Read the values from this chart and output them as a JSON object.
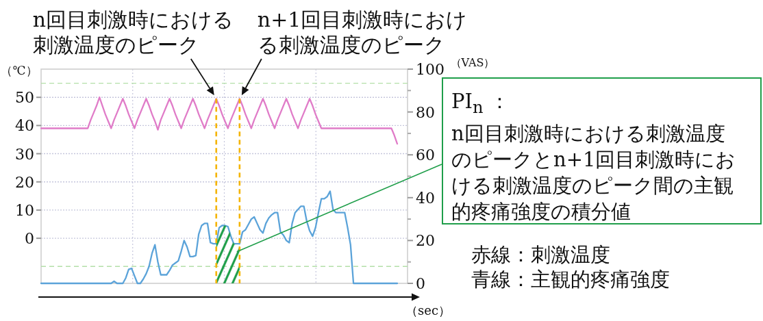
{
  "chart_data": {
    "type": "line",
    "categories": [
      null,
      null,
      null,
      null,
      null,
      null,
      null,
      null,
      null,
      null,
      null,
      null,
      null,
      null,
      null,
      null,
      null,
      null,
      null,
      null,
      null,
      null,
      null,
      null,
      null,
      null,
      null,
      null,
      null,
      null,
      null,
      null,
      null,
      null,
      null,
      null,
      null,
      null,
      null,
      null,
      null,
      null,
      null,
      null,
      null,
      null,
      null,
      null,
      null,
      null,
      null,
      null,
      null,
      null,
      null,
      null,
      null,
      null,
      null,
      null,
      null,
      null,
      null,
      null,
      null,
      null,
      null,
      null,
      null,
      null,
      null,
      null,
      null,
      null,
      null,
      null,
      null,
      null,
      null,
      null,
      null,
      null,
      null,
      null,
      null,
      null,
      null,
      null,
      null,
      null,
      null,
      null,
      null,
      null,
      null,
      null,
      null,
      null,
      null,
      null,
      null,
      null,
      null,
      null,
      null,
      null,
      null,
      null,
      null,
      null,
      null,
      null,
      null,
      null,
      null,
      null,
      null,
      null,
      null,
      null,
      null,
      null,
      null
    ],
    "series": [
      {
        "type": "line",
        "color": "#e07cc8",
        "values": [
          39,
          39,
          39,
          39,
          39,
          39,
          39,
          39,
          39,
          39,
          39,
          39,
          39,
          39,
          39,
          39,
          39,
          42,
          44.5,
          47,
          50,
          47,
          44,
          41.5,
          39,
          42,
          44.5,
          47,
          49.5,
          47,
          44,
          41.5,
          39,
          42,
          44.5,
          47,
          49.5,
          47,
          44,
          41.5,
          38.5,
          42,
          44.5,
          47,
          49.5,
          47,
          44,
          41.5,
          39,
          42,
          44.5,
          47,
          49.5,
          47,
          44,
          41.5,
          39,
          42,
          44.5,
          47,
          49.5,
          47,
          44,
          41.5,
          39,
          42,
          44.5,
          47,
          49.5,
          47,
          44,
          41.5,
          39,
          42,
          44.5,
          47,
          49.5,
          47,
          44,
          41.5,
          39,
          42,
          44.5,
          47,
          49.5,
          47,
          44,
          41.5,
          39,
          42,
          44.5,
          47,
          49.5,
          47,
          44,
          41.5,
          39,
          39,
          39,
          39,
          39,
          39,
          39,
          39,
          39,
          39,
          39,
          39,
          39,
          39,
          39,
          39,
          39,
          39,
          39,
          39,
          39,
          39,
          39,
          39,
          39,
          36.5,
          33.5
        ]
      },
      {
        "type": "line",
        "axis": "y2",
        "color": "#5ba3d9",
        "values": [
          0,
          0,
          0,
          0,
          0,
          0,
          0,
          0,
          0,
          0,
          0,
          0,
          0,
          0,
          0,
          0,
          0,
          0,
          0,
          0,
          0,
          0,
          0,
          0,
          0,
          1,
          0,
          0,
          0,
          2.5,
          6.5,
          7,
          3.5,
          0,
          0,
          2,
          4.5,
          8,
          14,
          18,
          10,
          4,
          4,
          4,
          6,
          8.5,
          9.5,
          10.5,
          15,
          20,
          17,
          12.5,
          12.5,
          13,
          23,
          27,
          28,
          28,
          19,
          18.5,
          18.5,
          26,
          27,
          27,
          26.5,
          22,
          18.5,
          18.5,
          18.5,
          24,
          25,
          27.5,
          30,
          31,
          28,
          25,
          23.5,
          28,
          30.5,
          32,
          33,
          33,
          24,
          22.5,
          20,
          19,
          28,
          33,
          34.5,
          36,
          36,
          29,
          24.5,
          22,
          26,
          33,
          39.5,
          39.5,
          40.5,
          43,
          34.5,
          33,
          33,
          33,
          33,
          26,
          18,
          0,
          0,
          0,
          0,
          0,
          0,
          0,
          0,
          0,
          0,
          0,
          0,
          0,
          0,
          0,
          0
        ]
      },
      {
        "type": "area",
        "axis": "y2",
        "color": "#1f9e4a",
        "values": [
          null,
          null,
          null,
          null,
          null,
          null,
          null,
          null,
          null,
          null,
          null,
          null,
          null,
          null,
          null,
          null,
          null,
          null,
          null,
          null,
          null,
          null,
          null,
          null,
          null,
          null,
          null,
          null,
          null,
          null,
          null,
          null,
          null,
          null,
          null,
          null,
          null,
          null,
          null,
          null,
          null,
          null,
          null,
          null,
          null,
          null,
          null,
          null,
          null,
          null,
          null,
          null,
          null,
          null,
          null,
          null,
          null,
          null,
          null,
          null,
          18.5,
          26,
          27,
          27,
          26.5,
          22,
          18.5,
          18.5,
          18.5,
          null,
          null,
          null,
          null,
          null,
          null,
          null,
          null,
          null,
          null,
          null,
          null,
          null,
          null,
          null,
          null,
          null,
          null,
          null,
          null,
          null,
          null,
          null,
          null,
          null,
          null,
          null,
          null,
          null,
          null,
          null,
          null,
          null,
          null,
          null,
          null,
          null,
          null,
          null,
          null,
          null,
          null,
          null,
          null,
          null,
          null,
          null,
          null,
          null,
          null,
          null,
          null,
          null,
          null
        ]
      }
    ],
    "ylabel": "（℃）",
    "y2label": "（VAS）",
    "xlabel": "（sec）",
    "ylim": [
      -16,
      60
    ],
    "yticks": [
      0,
      10,
      20,
      30,
      40,
      50
    ],
    "y2lim": [
      0,
      100
    ],
    "y2ticks": [
      0,
      20,
      40,
      60,
      80,
      100
    ],
    "grid": "y",
    "ref_lines": [
      {
        "axis": "y",
        "value": 55,
        "color": "#b3dfa8",
        "line_style": "dashed"
      },
      {
        "axis": "y",
        "value": -10,
        "color": "#b3dfa8",
        "line_style": "dashed"
      }
    ],
    "annotations": [
      "n回目刺激時における刺激温度のピーク",
      "n+1回目刺激時における刺激温度のピーク",
      "PI$_{n}$ ：\nn回目刺激時における刺激温度のピークとn+1回目刺激時における刺激温度のピーク間の主観的疼痛強度の積分値",
      "赤線：刺激温度",
      "青線：主観的疼痛強度"
    ]
  }
}
